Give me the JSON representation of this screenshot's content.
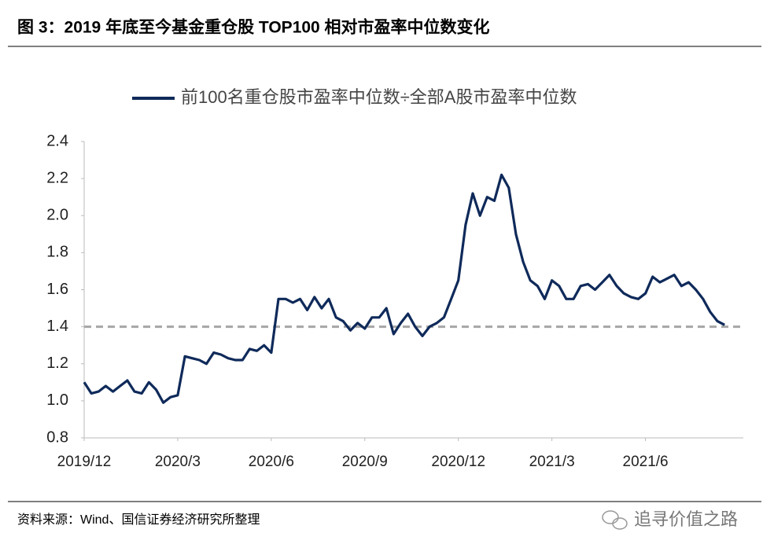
{
  "chart_data": {
    "type": "line",
    "title": "图 3：2019 年底至今基金重仓股 TOP100 相对市盈率中位数变化",
    "source": "资料来源：Wind、国信证券经济研究所整理",
    "watermark": "追寻价值之路",
    "categories": [
      "2019/12",
      null,
      null,
      null,
      null,
      null,
      null,
      null,
      null,
      null,
      null,
      null,
      null,
      "2020/3",
      null,
      null,
      null,
      null,
      null,
      null,
      null,
      null,
      null,
      null,
      null,
      null,
      "2020/6",
      null,
      null,
      null,
      null,
      null,
      null,
      null,
      null,
      null,
      null,
      null,
      null,
      "2020/9",
      null,
      null,
      null,
      null,
      null,
      null,
      null,
      null,
      null,
      null,
      null,
      null,
      "2020/12",
      null,
      null,
      null,
      null,
      null,
      null,
      null,
      null,
      null,
      null,
      null,
      null,
      "2021/3",
      null,
      null,
      null,
      null,
      null,
      null,
      null,
      null,
      null,
      null,
      null,
      null,
      "2021/6",
      null,
      null,
      null,
      null,
      null,
      null,
      null,
      null,
      null,
      null,
      null
    ],
    "series": [
      {
        "name": "前100名重仓股市盈率中位数÷全部A股市盈率中位数",
        "color": "#0f2a5a",
        "values": [
          1.1,
          1.04,
          1.05,
          1.08,
          1.05,
          1.08,
          1.11,
          1.05,
          1.04,
          1.1,
          1.06,
          0.99,
          1.02,
          1.03,
          1.24,
          1.23,
          1.22,
          1.2,
          1.26,
          1.25,
          1.23,
          1.22,
          1.22,
          1.28,
          1.27,
          1.3,
          1.26,
          1.55,
          1.55,
          1.53,
          1.55,
          1.49,
          1.56,
          1.5,
          1.55,
          1.45,
          1.43,
          1.38,
          1.42,
          1.39,
          1.45,
          1.45,
          1.5,
          1.36,
          1.42,
          1.47,
          1.4,
          1.35,
          1.4,
          1.42,
          1.45,
          1.55,
          1.65,
          1.95,
          2.12,
          2.0,
          2.1,
          2.08,
          2.22,
          2.15,
          1.9,
          1.75,
          1.65,
          1.62,
          1.55,
          1.65,
          1.62,
          1.55,
          1.55,
          1.62,
          1.63,
          1.6,
          1.64,
          1.68,
          1.62,
          1.58,
          1.56,
          1.55,
          1.58,
          1.67,
          1.64,
          1.66,
          1.68,
          1.62,
          1.64,
          1.6,
          1.55,
          1.48,
          1.43,
          1.41
        ]
      }
    ],
    "reference_line": {
      "value": 1.4,
      "color": "#a6a6a6"
    },
    "ylim": [
      0.8,
      2.4
    ],
    "yticks": [
      0.8,
      {
        "value": 1,
        "label": "1.0"
      },
      1.2,
      1.4,
      1.6,
      1.8,
      {
        "value": 2,
        "label": "2.0"
      },
      2.2,
      2.4
    ]
  }
}
